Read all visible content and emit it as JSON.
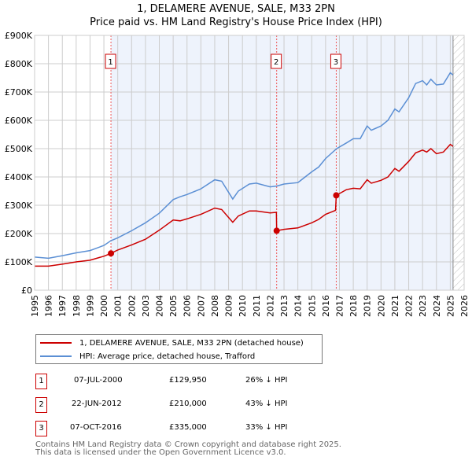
{
  "chart_data": {
    "type": "line",
    "title": "1, DELAMERE AVENUE, SALE, M33 2PN",
    "subtitle": "Price paid vs. HM Land Registry's House Price Index (HPI)",
    "xlim": [
      1995,
      2026
    ],
    "ylim": [
      0,
      900000
    ],
    "xticks": [
      "1995",
      "1996",
      "1997",
      "1998",
      "1999",
      "2000",
      "2001",
      "2002",
      "2003",
      "2004",
      "2005",
      "2006",
      "2007",
      "2008",
      "2009",
      "2010",
      "2011",
      "2012",
      "2013",
      "2014",
      "2015",
      "2016",
      "2017",
      "2018",
      "2019",
      "2020",
      "2021",
      "2022",
      "2023",
      "2024",
      "2025",
      "2026"
    ],
    "yticks": [
      {
        "v": 0,
        "l": "£0"
      },
      {
        "v": 100000,
        "l": "£100K"
      },
      {
        "v": 200000,
        "l": "£200K"
      },
      {
        "v": 300000,
        "l": "£300K"
      },
      {
        "v": 400000,
        "l": "£400K"
      },
      {
        "v": 500000,
        "l": "£500K"
      },
      {
        "v": 600000,
        "l": "£600K"
      },
      {
        "v": 700000,
        "l": "£700K"
      },
      {
        "v": 800000,
        "l": "£800K"
      },
      {
        "v": 900000,
        "l": "£900K"
      }
    ],
    "grid": true,
    "shaded_range": [
      2000.51,
      2025.2
    ],
    "hatched_after": 2025.2,
    "series": [
      {
        "name": "1, DELAMERE AVENUE, SALE, M33 2PN (detached house)",
        "color": "#cc0000",
        "x": [
          1995,
          1996,
          1997,
          1998,
          1999,
          2000,
          2000.51,
          2001,
          2002,
          2003,
          2004,
          2005,
          2005.5,
          2006,
          2007,
          2008,
          2008.5,
          2009.3,
          2009.7,
          2010.5,
          2011,
          2012,
          2012.45,
          2012.47,
          2013,
          2014,
          2015,
          2015.5,
          2016,
          2016.72,
          2016.77,
          2017.5,
          2018,
          2018.5,
          2019,
          2019.3,
          2020,
          2020.5,
          2021,
          2021.3,
          2022,
          2022.5,
          2023,
          2023.3,
          2023.6,
          2024,
          2024.5,
          2025,
          2025.2
        ],
        "y": [
          85000,
          85000,
          92000,
          100000,
          106000,
          120000,
          129950,
          142000,
          160000,
          180000,
          212000,
          248000,
          245000,
          252000,
          268000,
          290000,
          285000,
          240000,
          262000,
          280000,
          280000,
          273000,
          275000,
          210000,
          215000,
          220000,
          238000,
          250000,
          268000,
          282000,
          335000,
          355000,
          360000,
          358000,
          390000,
          378000,
          388000,
          400000,
          430000,
          420000,
          455000,
          485000,
          495000,
          488000,
          500000,
          482000,
          488000,
          515000,
          508000
        ]
      },
      {
        "name": "HPI: Average price, detached house, Trafford",
        "color": "#5b8fd4",
        "x": [
          1995,
          1996,
          1997,
          1998,
          1999,
          2000,
          2000.51,
          2001,
          2002,
          2003,
          2004,
          2005,
          2005.5,
          2006,
          2007,
          2008,
          2008.5,
          2009.3,
          2009.7,
          2010.5,
          2011,
          2012,
          2012.5,
          2013,
          2014,
          2015,
          2015.5,
          2016,
          2016.8,
          2017.5,
          2018,
          2018.5,
          2019,
          2019.3,
          2020,
          2020.5,
          2021,
          2021.3,
          2022,
          2022.5,
          2023,
          2023.3,
          2023.6,
          2024,
          2024.5,
          2025,
          2025.2
        ],
        "y": [
          117000,
          113000,
          122000,
          132000,
          140000,
          158000,
          175000,
          185000,
          210000,
          238000,
          272000,
          320000,
          330000,
          338000,
          358000,
          390000,
          385000,
          322000,
          350000,
          375000,
          378000,
          365000,
          368000,
          375000,
          380000,
          418000,
          435000,
          465000,
          500000,
          520000,
          535000,
          535000,
          580000,
          565000,
          580000,
          600000,
          640000,
          630000,
          680000,
          730000,
          740000,
          725000,
          745000,
          725000,
          728000,
          768000,
          760000
        ]
      }
    ],
    "sales": [
      {
        "n": "1",
        "x": 2000.51,
        "date": "07-JUL-2000",
        "price": 129950,
        "price_label": "£129,950",
        "hpi": "26% ↓ HPI"
      },
      {
        "n": "2",
        "x": 2012.47,
        "date": "22-JUN-2012",
        "price": 210000,
        "price_label": "£210,000",
        "hpi": "43% ↓ HPI"
      },
      {
        "n": "3",
        "x": 2016.77,
        "date": "07-OCT-2016",
        "price": 335000,
        "price_label": "£335,000",
        "hpi": "33% ↓ HPI"
      }
    ],
    "legend_position": "below"
  },
  "footer": {
    "line1": "Contains HM Land Registry data © Crown copyright and database right 2025.",
    "line2": "This data is licensed under the Open Government Licence v3.0."
  }
}
